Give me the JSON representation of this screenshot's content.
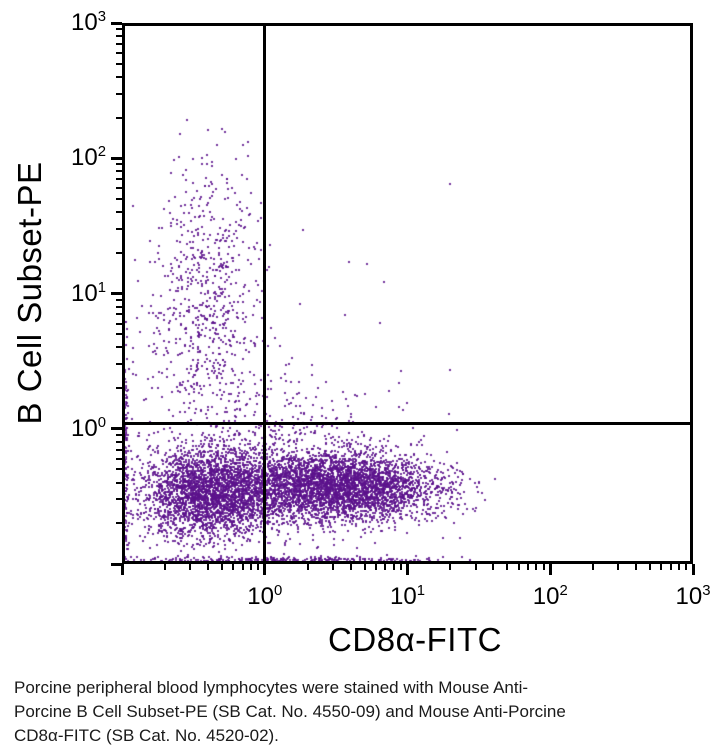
{
  "figure": {
    "background": "#ffffff",
    "axis_color": "#000000"
  },
  "caption": {
    "lines": [
      "Porcine peripheral blood lymphocytes were stained with Mouse Anti-",
      "Porcine B Cell Subset-PE (SB Cat. No. 4550-09) and Mouse Anti-Porcine",
      "CD8α-FITC (SB Cat. No. 4520-02)."
    ]
  },
  "chart_data": {
    "type": "scatter",
    "title": "",
    "xlabel": "CD8α-FITC",
    "ylabel": "B Cell Subset-PE",
    "x_scale": "log",
    "y_scale": "log",
    "x_range_log10": [
      -1,
      3
    ],
    "y_range_log10": [
      -1,
      3
    ],
    "tick_base": "10",
    "labeled_decades_x": [
      0,
      1,
      2,
      3
    ],
    "labeled_decades_y": [
      0,
      1,
      2,
      3
    ],
    "grid": false,
    "legend": false,
    "quadrant_gate": {
      "x": 1.0,
      "y": 1.1
    },
    "point_color": "rgba(92,18,140,0.85)",
    "point_size": 2,
    "seed": 42,
    "populations": [
      {
        "name": "double-negative",
        "n": 2700,
        "cx": -0.38,
        "cy": -0.48,
        "sx": 0.24,
        "sy": 0.16
      },
      {
        "name": "cd8-positive",
        "n": 3400,
        "cx": 0.55,
        "cy": -0.43,
        "sx": 0.34,
        "sy": 0.13,
        "xmax": 1.62
      },
      {
        "name": "band-bridge",
        "n": 700,
        "cx": 0.05,
        "cy": -0.4,
        "sx": 0.45,
        "sy": 0.18
      },
      {
        "name": "b-cells",
        "n": 620,
        "cx": -0.4,
        "cy": 0.95,
        "sx": 0.2,
        "sy": 0.55,
        "xmin": -0.95,
        "xmax": 0.05,
        "ymin": 0.12,
        "ymax": 2.35
      },
      {
        "name": "above-band-halo",
        "n": 320,
        "cx": -0.15,
        "cy": -0.02,
        "sx": 0.5,
        "sy": 0.28,
        "ymax": 0.6
      },
      {
        "name": "left-edge-pile",
        "n": 130,
        "pin": "left",
        "cy": -0.35,
        "sy": 0.45,
        "ymax": 2.0
      },
      {
        "name": "bottom-edge-pile",
        "n": 260,
        "pin": "bottom",
        "cx": 0.15,
        "sx": 0.6,
        "xmax": 1.5
      },
      {
        "name": "upper-right-sparse",
        "n": 16,
        "cx": 0.55,
        "cy": 0.95,
        "sx": 0.38,
        "sy": 0.55
      }
    ]
  }
}
